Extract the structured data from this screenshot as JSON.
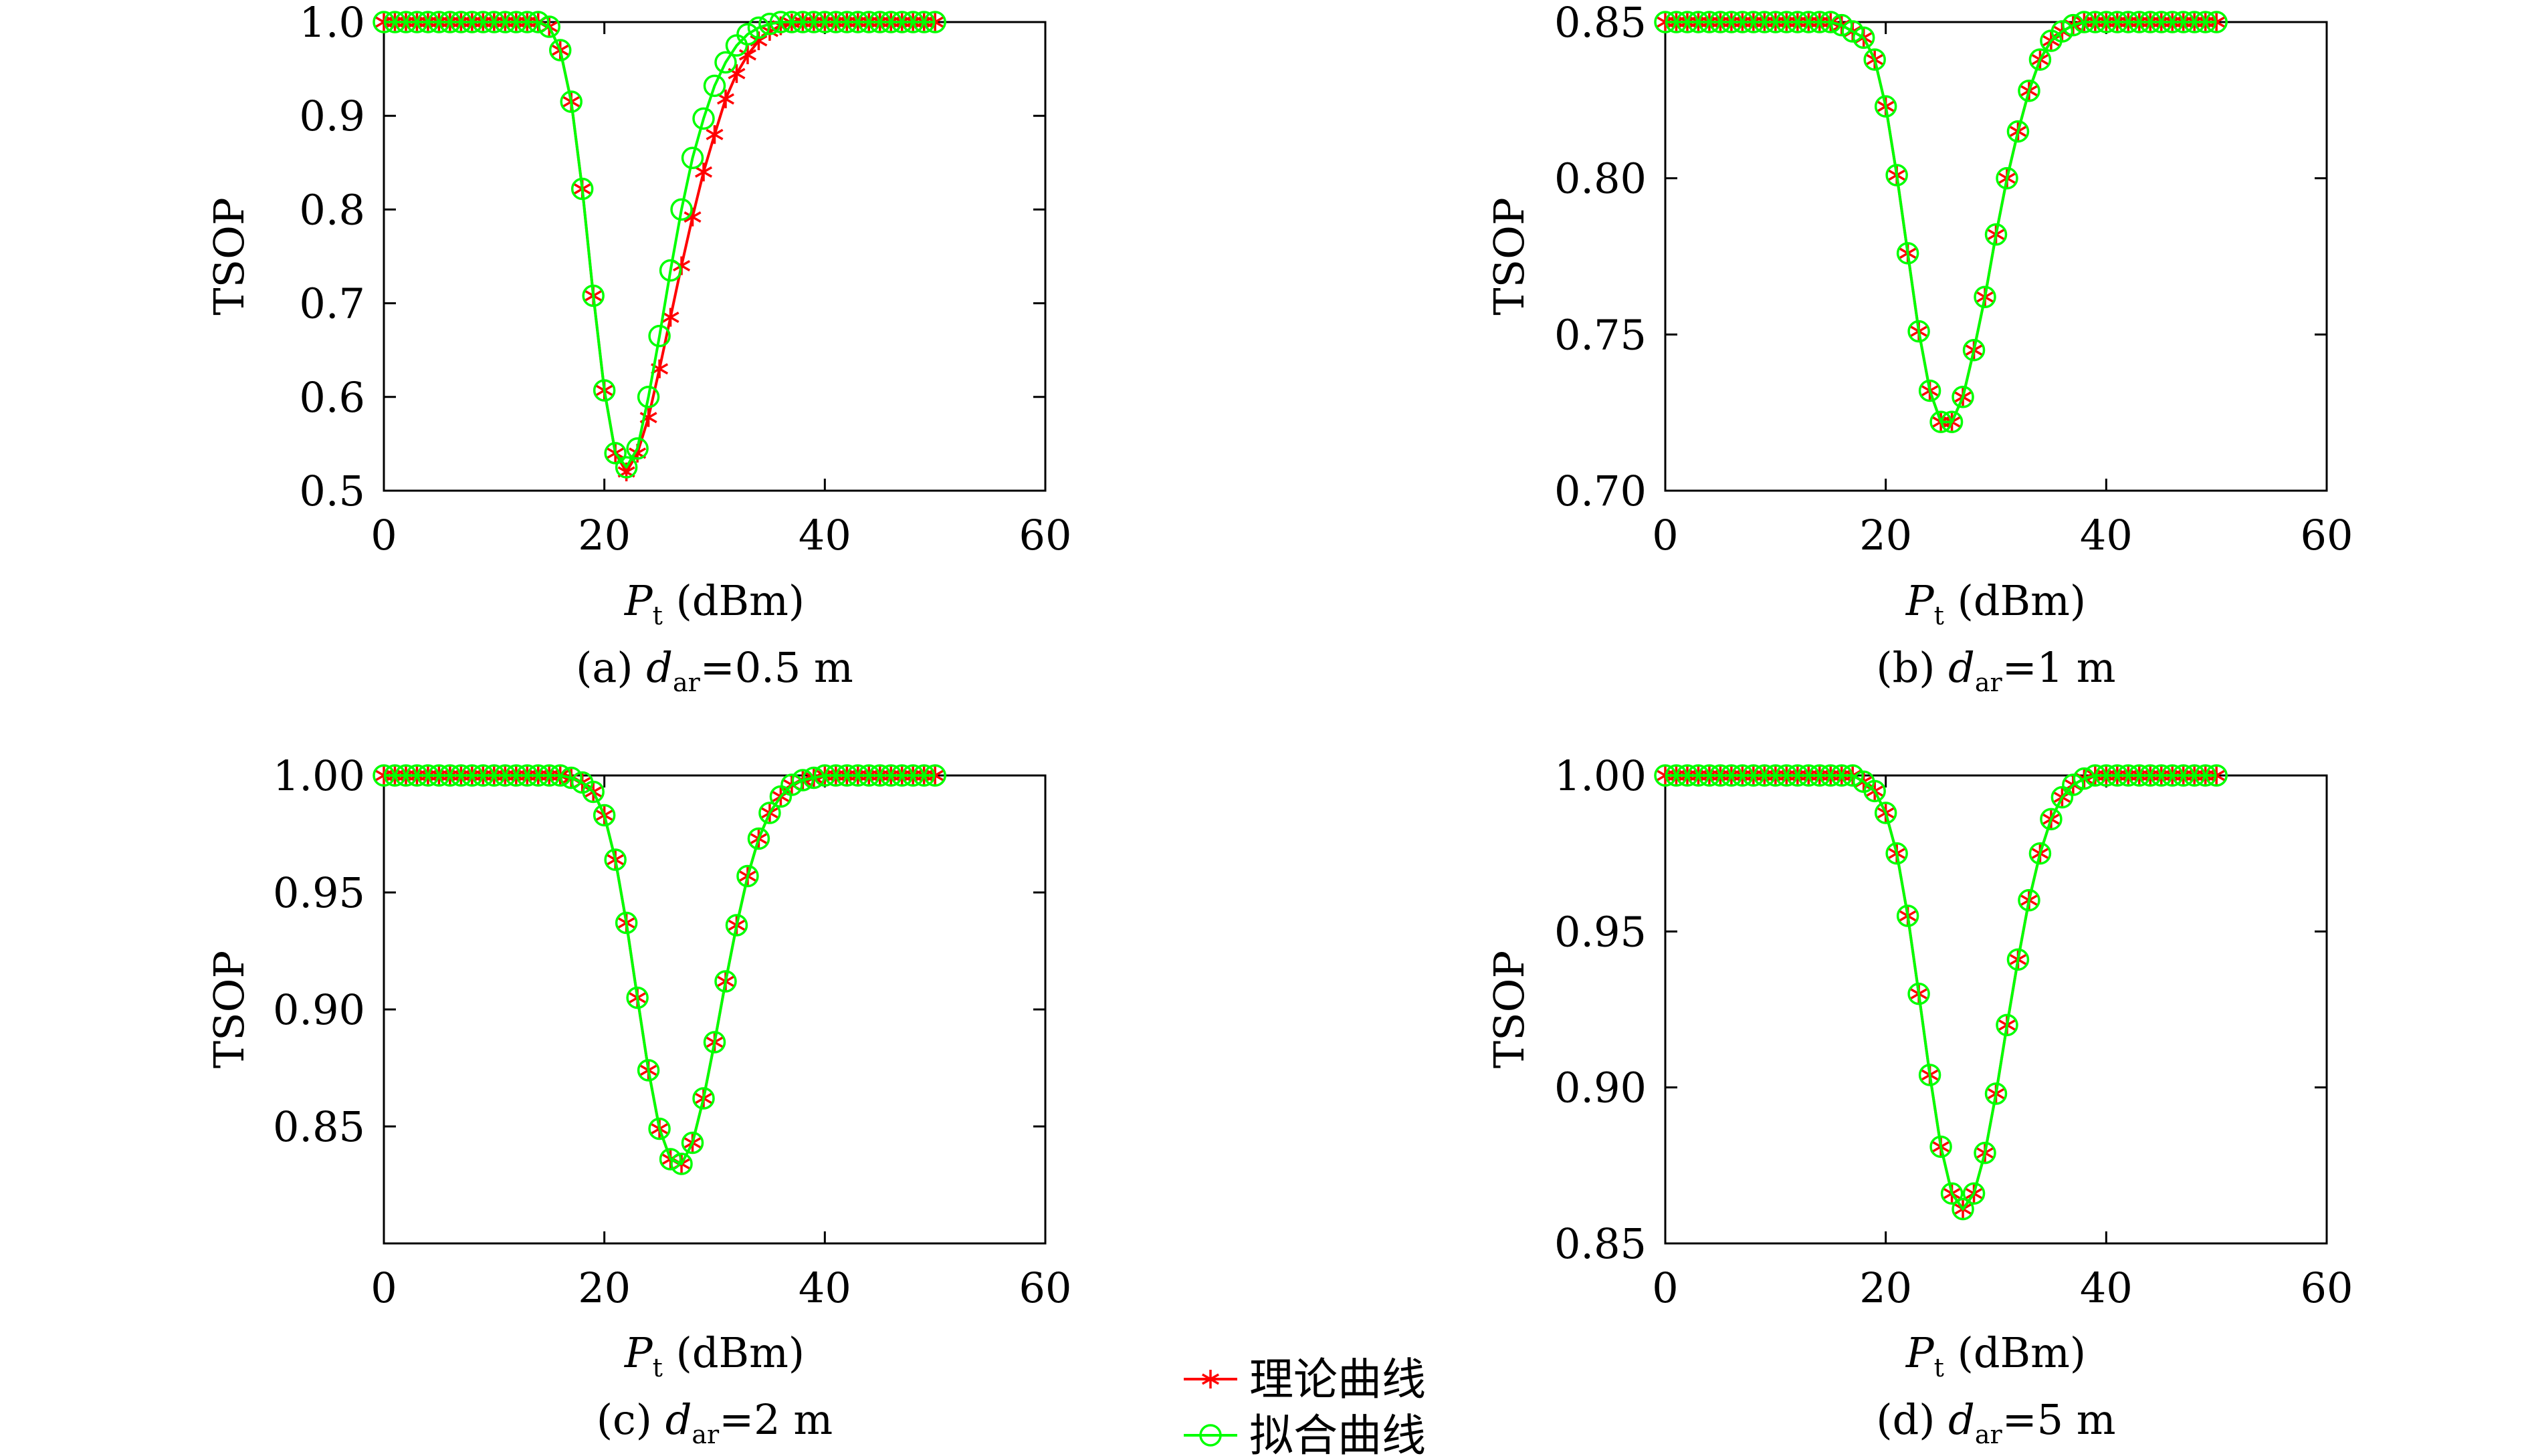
{
  "legend": {
    "entries": [
      {
        "label": "理论曲线",
        "color": "#ff0000",
        "marker": "star"
      },
      {
        "label": "拟合曲线",
        "color": "#00ff00",
        "marker": "circle"
      }
    ]
  },
  "chart_data": [
    {
      "type": "line",
      "panel": "a",
      "caption": {
        "prefix": "(a)",
        "var": "d",
        "sub": "ar",
        "value": "=0.5 m"
      },
      "xlabel": {
        "var": "P",
        "sub": "t",
        "unit": "(dBm)"
      },
      "ylabel": "TSOP",
      "xlim": [
        0,
        60
      ],
      "ylim": [
        0.5,
        1.0
      ],
      "xticks": [
        0,
        20,
        40,
        60
      ],
      "yticks": [
        0.5,
        0.6,
        0.7,
        0.8,
        0.9,
        1.0
      ],
      "ytick_labels": [
        "0.5",
        "0.6",
        "0.7",
        "0.8",
        "0.9",
        "1.0"
      ],
      "grid": false,
      "series": [
        {
          "name": "理论曲线",
          "color": "#ff0000",
          "marker": "star",
          "x": [
            0,
            1,
            2,
            3,
            4,
            5,
            6,
            7,
            8,
            9,
            10,
            11,
            12,
            13,
            14,
            15,
            16,
            17,
            18,
            19,
            20,
            21,
            22,
            23,
            24,
            25,
            26,
            27,
            28,
            29,
            30,
            31,
            32,
            33,
            34,
            35,
            36,
            37,
            38,
            39,
            40,
            41,
            42,
            43,
            44,
            45,
            46,
            47,
            48,
            49,
            50
          ],
          "y": [
            1.0,
            1.0,
            1.0,
            1.0,
            1.0,
            1.0,
            1.0,
            1.0,
            1.0,
            1.0,
            1.0,
            1.0,
            1.0,
            1.0,
            1.0,
            0.995,
            0.97,
            0.915,
            0.822,
            0.708,
            0.607,
            0.54,
            0.52,
            0.54,
            0.578,
            0.63,
            0.685,
            0.74,
            0.792,
            0.84,
            0.88,
            0.918,
            0.945,
            0.965,
            0.98,
            0.99,
            0.996,
            0.999,
            1.0,
            1.0,
            1.0,
            1.0,
            1.0,
            1.0,
            1.0,
            1.0,
            1.0,
            1.0,
            1.0,
            1.0,
            1.0
          ]
        },
        {
          "name": "拟合曲线",
          "color": "#00ff00",
          "marker": "circle",
          "x": [
            0,
            1,
            2,
            3,
            4,
            5,
            6,
            7,
            8,
            9,
            10,
            11,
            12,
            13,
            14,
            15,
            16,
            17,
            18,
            19,
            20,
            21,
            22,
            23,
            24,
            25,
            26,
            27,
            28,
            29,
            30,
            31,
            32,
            33,
            34,
            35,
            36,
            37,
            38,
            39,
            40,
            41,
            42,
            43,
            44,
            45,
            46,
            47,
            48,
            49,
            50
          ],
          "y": [
            1.0,
            1.0,
            1.0,
            1.0,
            1.0,
            1.0,
            1.0,
            1.0,
            1.0,
            1.0,
            1.0,
            1.0,
            1.0,
            1.0,
            1.0,
            0.995,
            0.97,
            0.915,
            0.822,
            0.708,
            0.607,
            0.54,
            0.525,
            0.545,
            0.6,
            0.665,
            0.735,
            0.8,
            0.855,
            0.897,
            0.932,
            0.957,
            0.975,
            0.987,
            0.994,
            0.998,
            1.0,
            1.0,
            1.0,
            1.0,
            1.0,
            1.0,
            1.0,
            1.0,
            1.0,
            1.0,
            1.0,
            1.0,
            1.0,
            1.0,
            1.0
          ]
        }
      ]
    },
    {
      "type": "line",
      "panel": "b",
      "caption": {
        "prefix": "(b)",
        "var": "d",
        "sub": "ar",
        "value": "=1 m"
      },
      "xlabel": {
        "var": "P",
        "sub": "t",
        "unit": "(dBm)"
      },
      "ylabel": "TSOP",
      "xlim": [
        0,
        60
      ],
      "ylim": [
        0.7,
        0.85
      ],
      "xticks": [
        0,
        20,
        40,
        60
      ],
      "yticks": [
        0.7,
        0.75,
        0.8,
        0.85
      ],
      "ytick_labels": [
        "0.70",
        "0.75",
        "0.80",
        "0.85"
      ],
      "grid": false,
      "series": [
        {
          "name": "理论曲线",
          "color": "#ff0000",
          "marker": "star",
          "x": [
            0,
            1,
            2,
            3,
            4,
            5,
            6,
            7,
            8,
            9,
            10,
            11,
            12,
            13,
            14,
            15,
            16,
            17,
            18,
            19,
            20,
            21,
            22,
            23,
            24,
            25,
            26,
            27,
            28,
            29,
            30,
            31,
            32,
            33,
            34,
            35,
            36,
            37,
            38,
            39,
            40,
            41,
            42,
            43,
            44,
            45,
            46,
            47,
            48,
            49,
            50
          ],
          "y": [
            0.85,
            0.85,
            0.85,
            0.85,
            0.85,
            0.85,
            0.85,
            0.85,
            0.85,
            0.85,
            0.85,
            0.85,
            0.85,
            0.85,
            0.85,
            0.85,
            0.849,
            0.847,
            0.845,
            0.838,
            0.823,
            0.801,
            0.776,
            0.751,
            0.732,
            0.722,
            0.722,
            0.73,
            0.745,
            0.762,
            0.782,
            0.8,
            0.815,
            0.828,
            0.838,
            0.844,
            0.847,
            0.849,
            0.85,
            0.85,
            0.85,
            0.85,
            0.85,
            0.85,
            0.85,
            0.85,
            0.85,
            0.85,
            0.85,
            0.85,
            0.85
          ]
        },
        {
          "name": "拟合曲线",
          "color": "#00ff00",
          "marker": "circle",
          "x": [
            0,
            1,
            2,
            3,
            4,
            5,
            6,
            7,
            8,
            9,
            10,
            11,
            12,
            13,
            14,
            15,
            16,
            17,
            18,
            19,
            20,
            21,
            22,
            23,
            24,
            25,
            26,
            27,
            28,
            29,
            30,
            31,
            32,
            33,
            34,
            35,
            36,
            37,
            38,
            39,
            40,
            41,
            42,
            43,
            44,
            45,
            46,
            47,
            48,
            49,
            50
          ],
          "y": [
            0.85,
            0.85,
            0.85,
            0.85,
            0.85,
            0.85,
            0.85,
            0.85,
            0.85,
            0.85,
            0.85,
            0.85,
            0.85,
            0.85,
            0.85,
            0.85,
            0.849,
            0.847,
            0.845,
            0.838,
            0.823,
            0.801,
            0.776,
            0.751,
            0.732,
            0.722,
            0.722,
            0.73,
            0.745,
            0.762,
            0.782,
            0.8,
            0.815,
            0.828,
            0.838,
            0.844,
            0.847,
            0.849,
            0.85,
            0.85,
            0.85,
            0.85,
            0.85,
            0.85,
            0.85,
            0.85,
            0.85,
            0.85,
            0.85,
            0.85,
            0.85
          ]
        }
      ]
    },
    {
      "type": "line",
      "panel": "c",
      "caption": {
        "prefix": "(c)",
        "var": "d",
        "sub": "ar",
        "value": "=2 m"
      },
      "xlabel": {
        "var": "P",
        "sub": "t",
        "unit": "(dBm)"
      },
      "ylabel": "TSOP",
      "xlim": [
        0,
        60
      ],
      "ylim": [
        0.8,
        1.0
      ],
      "xticks": [
        0,
        20,
        40,
        60
      ],
      "yticks": [
        0.85,
        0.9,
        0.95,
        1.0
      ],
      "ytick_labels": [
        "0.85",
        "0.90",
        "0.95",
        "1.00"
      ],
      "grid": false,
      "series": [
        {
          "name": "理论曲线",
          "color": "#ff0000",
          "marker": "star",
          "x": [
            0,
            1,
            2,
            3,
            4,
            5,
            6,
            7,
            8,
            9,
            10,
            11,
            12,
            13,
            14,
            15,
            16,
            17,
            18,
            19,
            20,
            21,
            22,
            23,
            24,
            25,
            26,
            27,
            28,
            29,
            30,
            31,
            32,
            33,
            34,
            35,
            36,
            37,
            38,
            39,
            40,
            41,
            42,
            43,
            44,
            45,
            46,
            47,
            48,
            49,
            50
          ],
          "y": [
            1.0,
            1.0,
            1.0,
            1.0,
            1.0,
            1.0,
            1.0,
            1.0,
            1.0,
            1.0,
            1.0,
            1.0,
            1.0,
            1.0,
            1.0,
            1.0,
            1.0,
            0.999,
            0.997,
            0.993,
            0.983,
            0.964,
            0.937,
            0.905,
            0.874,
            0.849,
            0.836,
            0.834,
            0.843,
            0.862,
            0.886,
            0.912,
            0.936,
            0.957,
            0.973,
            0.984,
            0.991,
            0.996,
            0.998,
            0.999,
            1.0,
            1.0,
            1.0,
            1.0,
            1.0,
            1.0,
            1.0,
            1.0,
            1.0,
            1.0,
            1.0
          ]
        },
        {
          "name": "拟合曲线",
          "color": "#00ff00",
          "marker": "circle",
          "x": [
            0,
            1,
            2,
            3,
            4,
            5,
            6,
            7,
            8,
            9,
            10,
            11,
            12,
            13,
            14,
            15,
            16,
            17,
            18,
            19,
            20,
            21,
            22,
            23,
            24,
            25,
            26,
            27,
            28,
            29,
            30,
            31,
            32,
            33,
            34,
            35,
            36,
            37,
            38,
            39,
            40,
            41,
            42,
            43,
            44,
            45,
            46,
            47,
            48,
            49,
            50
          ],
          "y": [
            1.0,
            1.0,
            1.0,
            1.0,
            1.0,
            1.0,
            1.0,
            1.0,
            1.0,
            1.0,
            1.0,
            1.0,
            1.0,
            1.0,
            1.0,
            1.0,
            1.0,
            0.999,
            0.997,
            0.993,
            0.983,
            0.964,
            0.937,
            0.905,
            0.874,
            0.849,
            0.836,
            0.834,
            0.843,
            0.862,
            0.886,
            0.912,
            0.936,
            0.957,
            0.973,
            0.984,
            0.991,
            0.996,
            0.998,
            0.999,
            1.0,
            1.0,
            1.0,
            1.0,
            1.0,
            1.0,
            1.0,
            1.0,
            1.0,
            1.0,
            1.0
          ]
        }
      ]
    },
    {
      "type": "line",
      "panel": "d",
      "caption": {
        "prefix": "(d)",
        "var": "d",
        "sub": "ar",
        "value": "=5 m"
      },
      "xlabel": {
        "var": "P",
        "sub": "t",
        "unit": "(dBm)"
      },
      "ylabel": "TSOP",
      "xlim": [
        0,
        60
      ],
      "ylim": [
        0.85,
        1.0
      ],
      "xticks": [
        0,
        20,
        40,
        60
      ],
      "yticks": [
        0.85,
        0.9,
        0.95,
        1.0
      ],
      "ytick_labels": [
        "0.85",
        "0.90",
        "0.95",
        "1.00"
      ],
      "grid": false,
      "series": [
        {
          "name": "理论曲线",
          "color": "#ff0000",
          "marker": "star",
          "x": [
            0,
            1,
            2,
            3,
            4,
            5,
            6,
            7,
            8,
            9,
            10,
            11,
            12,
            13,
            14,
            15,
            16,
            17,
            18,
            19,
            20,
            21,
            22,
            23,
            24,
            25,
            26,
            27,
            28,
            29,
            30,
            31,
            32,
            33,
            34,
            35,
            36,
            37,
            38,
            39,
            40,
            41,
            42,
            43,
            44,
            45,
            46,
            47,
            48,
            49,
            50
          ],
          "y": [
            1.0,
            1.0,
            1.0,
            1.0,
            1.0,
            1.0,
            1.0,
            1.0,
            1.0,
            1.0,
            1.0,
            1.0,
            1.0,
            1.0,
            1.0,
            1.0,
            1.0,
            1.0,
            0.998,
            0.995,
            0.988,
            0.975,
            0.955,
            0.93,
            0.904,
            0.881,
            0.866,
            0.861,
            0.866,
            0.879,
            0.898,
            0.92,
            0.941,
            0.96,
            0.975,
            0.986,
            0.993,
            0.997,
            0.999,
            1.0,
            1.0,
            1.0,
            1.0,
            1.0,
            1.0,
            1.0,
            1.0,
            1.0,
            1.0,
            1.0,
            1.0
          ]
        },
        {
          "name": "拟合曲线",
          "color": "#00ff00",
          "marker": "circle",
          "x": [
            0,
            1,
            2,
            3,
            4,
            5,
            6,
            7,
            8,
            9,
            10,
            11,
            12,
            13,
            14,
            15,
            16,
            17,
            18,
            19,
            20,
            21,
            22,
            23,
            24,
            25,
            26,
            27,
            28,
            29,
            30,
            31,
            32,
            33,
            34,
            35,
            36,
            37,
            38,
            39,
            40,
            41,
            42,
            43,
            44,
            45,
            46,
            47,
            48,
            49,
            50
          ],
          "y": [
            1.0,
            1.0,
            1.0,
            1.0,
            1.0,
            1.0,
            1.0,
            1.0,
            1.0,
            1.0,
            1.0,
            1.0,
            1.0,
            1.0,
            1.0,
            1.0,
            1.0,
            1.0,
            0.998,
            0.995,
            0.988,
            0.975,
            0.955,
            0.93,
            0.904,
            0.881,
            0.866,
            0.861,
            0.866,
            0.879,
            0.898,
            0.92,
            0.941,
            0.96,
            0.975,
            0.986,
            0.993,
            0.997,
            0.999,
            1.0,
            1.0,
            1.0,
            1.0,
            1.0,
            1.0,
            1.0,
            1.0,
            1.0,
            1.0,
            1.0,
            1.0
          ]
        }
      ]
    }
  ]
}
